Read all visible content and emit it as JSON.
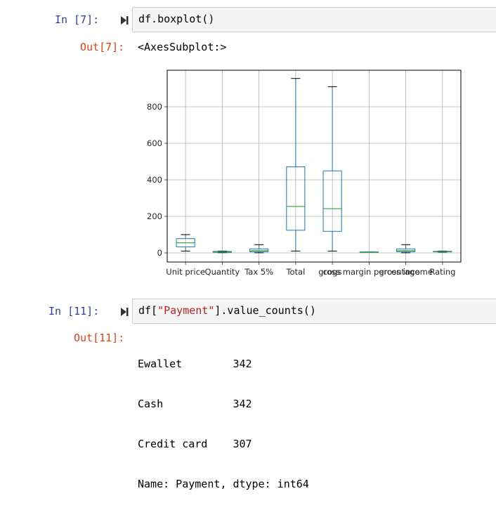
{
  "cells": [
    {
      "in_prompt": "In [7]:",
      "code": "df.boxplot()",
      "out_prompt": "Out[7]:",
      "output_text": "<AxesSubplot:>"
    },
    {
      "in_prompt": "In [11]:",
      "code_prefix": "df[",
      "code_string": "\"Payment\"",
      "code_suffix": "].value_counts()",
      "out_prompt": "Out[11]:",
      "output_lines": [
        "Ewallet        342",
        "Cash           342",
        "Credit card    307",
        "Name: Payment, dtype: int64"
      ]
    }
  ],
  "icons": {
    "run": "run-cell-icon"
  },
  "colors": {
    "in_prompt": "#303f9f",
    "out_prompt": "#d84315",
    "box": "#1f77b4",
    "median": "#2ca02c"
  },
  "chart_data": {
    "type": "boxplot",
    "categories": [
      "Unit price",
      "Quantity",
      "Tax 5%",
      "Total",
      "cogs",
      "gross margin percentage",
      "gross income",
      "Rating"
    ],
    "series": [
      {
        "whisker_low": 10,
        "q1": 33,
        "median": 55,
        "q3": 78,
        "whisker_high": 100
      },
      {
        "whisker_low": 1,
        "q1": 3,
        "median": 5,
        "q3": 8,
        "whisker_high": 10
      },
      {
        "whisker_low": 0.5,
        "q1": 6,
        "median": 12,
        "q3": 22,
        "whisker_high": 45
      },
      {
        "whisker_low": 10,
        "q1": 124,
        "median": 254,
        "q3": 471,
        "whisker_high": 955
      },
      {
        "whisker_low": 10,
        "q1": 118,
        "median": 242,
        "q3": 449,
        "whisker_high": 910
      },
      {
        "whisker_low": 4.76,
        "q1": 4.76,
        "median": 4.76,
        "q3": 4.76,
        "whisker_high": 4.76
      },
      {
        "whisker_low": 0.5,
        "q1": 6,
        "median": 12,
        "q3": 22,
        "whisker_high": 45
      },
      {
        "whisker_low": 4,
        "q1": 5.5,
        "median": 7,
        "q3": 8.5,
        "whisker_high": 10
      }
    ],
    "yticks": [
      "0",
      "200",
      "400",
      "600",
      "800"
    ],
    "ylim": [
      -50,
      1000
    ],
    "grid": true
  }
}
